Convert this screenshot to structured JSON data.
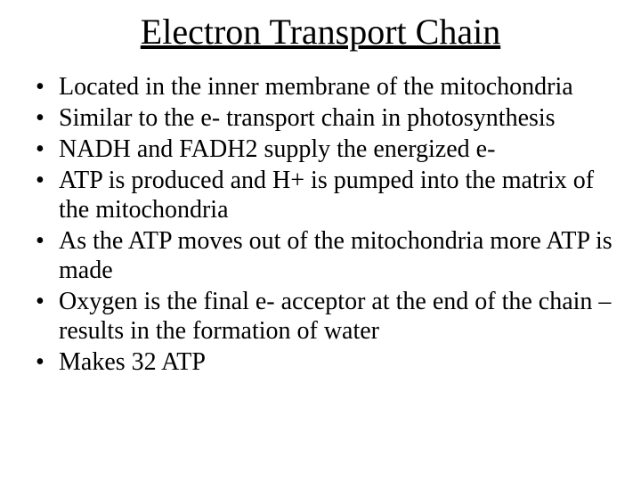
{
  "slide": {
    "title": "Electron Transport Chain",
    "bullets": [
      "Located in the inner membrane of the mitochondria",
      "Similar to the e- transport chain in photosynthesis",
      "NADH and FADH2 supply the energized e-",
      "ATP is produced and H+ is pumped into the matrix of the mitochondria",
      "As the ATP moves out of the mitochondria more ATP is made",
      "Oxygen is the final e- acceptor at the end of the chain – results in the formation of water",
      "Makes 32 ATP"
    ]
  },
  "style": {
    "background_color": "#ffffff",
    "text_color": "#000000",
    "font_family": "Times New Roman",
    "title_fontsize": 40,
    "title_underline": true,
    "title_align": "center",
    "bullet_fontsize": 28,
    "bullet_line_height": 1.18,
    "bullet_marker": "•"
  }
}
